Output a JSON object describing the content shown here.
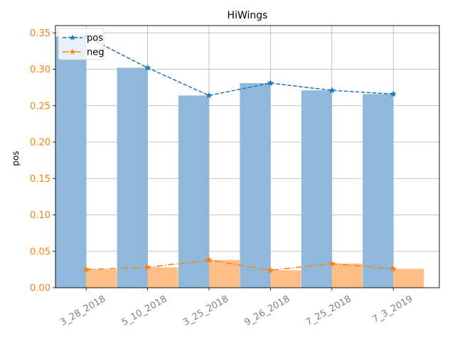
{
  "chart_data": {
    "type": "bar",
    "title": "HiWings",
    "ylabel": "pos",
    "xlabel": "",
    "categories": [
      "3_28_2018",
      "5_10_2018",
      "3_25_2018",
      "9_26_2018",
      "7_25_2018",
      "7_3_2019"
    ],
    "ylim": [
      0,
      0.36
    ],
    "yticks": [
      "0.00",
      "0.05",
      "0.10",
      "0.15",
      "0.20",
      "0.25",
      "0.30",
      "0.35"
    ],
    "grid": true,
    "legend_position": "top-left",
    "series": [
      {
        "name": "pos",
        "kind": "bar+line",
        "values": [
          0.345,
          0.302,
          0.264,
          0.281,
          0.271,
          0.266
        ],
        "bar_color": "#8fb8db",
        "line_color": "#1f77b4",
        "line_style": "dashed",
        "marker": "star"
      },
      {
        "name": "neg",
        "kind": "bar+line",
        "values": [
          0.025,
          0.028,
          0.038,
          0.024,
          0.033,
          0.026
        ],
        "bar_color": "#ffbb80",
        "line_color": "#ff7f0e",
        "line_style": "dashdot",
        "marker": "star"
      }
    ],
    "tick_label_color": "#ff7f0e",
    "x_tick_label_color": "#808080"
  }
}
